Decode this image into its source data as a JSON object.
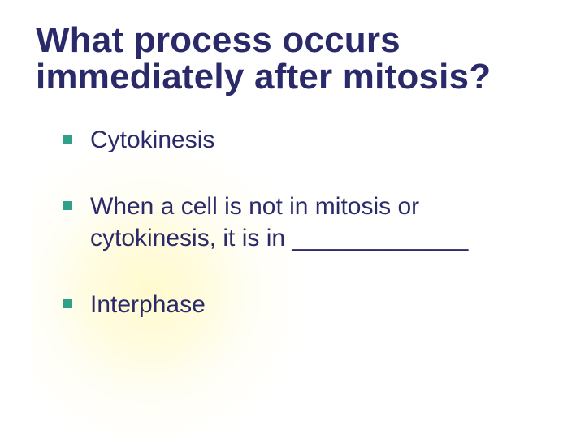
{
  "slide": {
    "title": "What process occurs immediately after mitosis?",
    "title_color": "#2a2a6a",
    "title_fontsize": 44,
    "title_fontweight": "bold",
    "body_color": "#2a2a6a",
    "body_fontsize": 30,
    "bullet_color": "#2fa08a",
    "bullet_size": 11,
    "background_color": "#ffffff",
    "glow_color": "#fffad2",
    "items": [
      {
        "text": "Cytokinesis"
      },
      {
        "text": "When a cell is not in mitosis or cytokinesis, it is in _____________"
      },
      {
        "text": "Interphase"
      }
    ]
  }
}
